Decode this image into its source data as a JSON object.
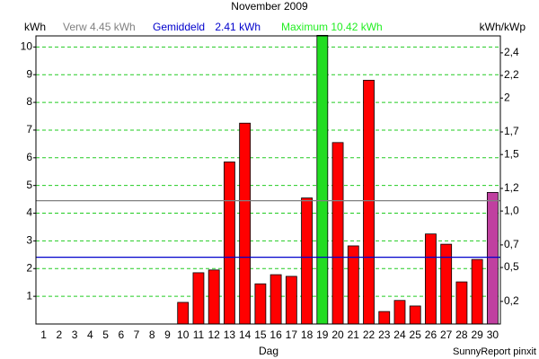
{
  "chart_data": {
    "type": "bar",
    "title": "November 2009",
    "y_label": "kWh",
    "y2_label": "kWh/kWp",
    "x_label": "Dag",
    "footer": "SunnyReport pinxit",
    "categories": [
      "1",
      "2",
      "3",
      "4",
      "5",
      "6",
      "7",
      "8",
      "9",
      "10",
      "11",
      "12",
      "13",
      "14",
      "15",
      "16",
      "17",
      "18",
      "19",
      "20",
      "21",
      "22",
      "23",
      "24",
      "25",
      "26",
      "27",
      "28",
      "29",
      "30"
    ],
    "values": [
      0,
      0,
      0,
      0,
      0,
      0,
      0,
      0,
      0,
      0.78,
      1.85,
      1.95,
      5.85,
      7.25,
      1.45,
      1.78,
      1.72,
      4.55,
      10.42,
      6.55,
      2.82,
      8.8,
      0.45,
      0.85,
      0.65,
      3.25,
      2.88,
      1.52,
      2.33,
      4.75
    ],
    "colors": [
      "#ff0000",
      "#ff0000",
      "#ff0000",
      "#ff0000",
      "#ff0000",
      "#ff0000",
      "#ff0000",
      "#ff0000",
      "#ff0000",
      "#ff0000",
      "#ff0000",
      "#ff0000",
      "#ff0000",
      "#ff0000",
      "#ff0000",
      "#ff0000",
      "#ff0000",
      "#ff0000",
      "#22dd22",
      "#ff0000",
      "#ff0000",
      "#ff0000",
      "#ff0000",
      "#ff0000",
      "#ff0000",
      "#ff0000",
      "#ff0000",
      "#ff0000",
      "#ff0000",
      "#c040a0"
    ],
    "ylim": [
      0,
      10.4
    ],
    "yticks": [
      1,
      2,
      3,
      4,
      5,
      6,
      7,
      8,
      9,
      10
    ],
    "y2lim": [
      0,
      2.55
    ],
    "y2ticks": [
      {
        "value": 0.2,
        "label": "0,2"
      },
      {
        "value": 0.5,
        "label": "0,5"
      },
      {
        "value": 0.7,
        "label": "0,7"
      },
      {
        "value": 1.0,
        "label": "1,0"
      },
      {
        "value": 1.2,
        "label": "1,2"
      },
      {
        "value": 1.5,
        "label": "1,5"
      },
      {
        "value": 1.7,
        "label": "1,7"
      },
      2,
      {
        "value": 2.2,
        "label": "2,2"
      },
      {
        "value": 2.4,
        "label": "2,4"
      }
    ],
    "grid": true,
    "grid_color": "#22cc22",
    "summary": [
      {
        "name": "Verw",
        "value": 4.45,
        "value_label": "4.45 kWh",
        "color": "#808080",
        "line": true
      },
      {
        "name": "Gemiddeld",
        "value": 2.41,
        "value_label": "2.41 kWh",
        "color": "#0000cc",
        "line": true
      },
      {
        "name": "Maximum",
        "value": 10.42,
        "value_label": "10.42 kWh",
        "color": "#22ee22",
        "line": false
      }
    ]
  }
}
